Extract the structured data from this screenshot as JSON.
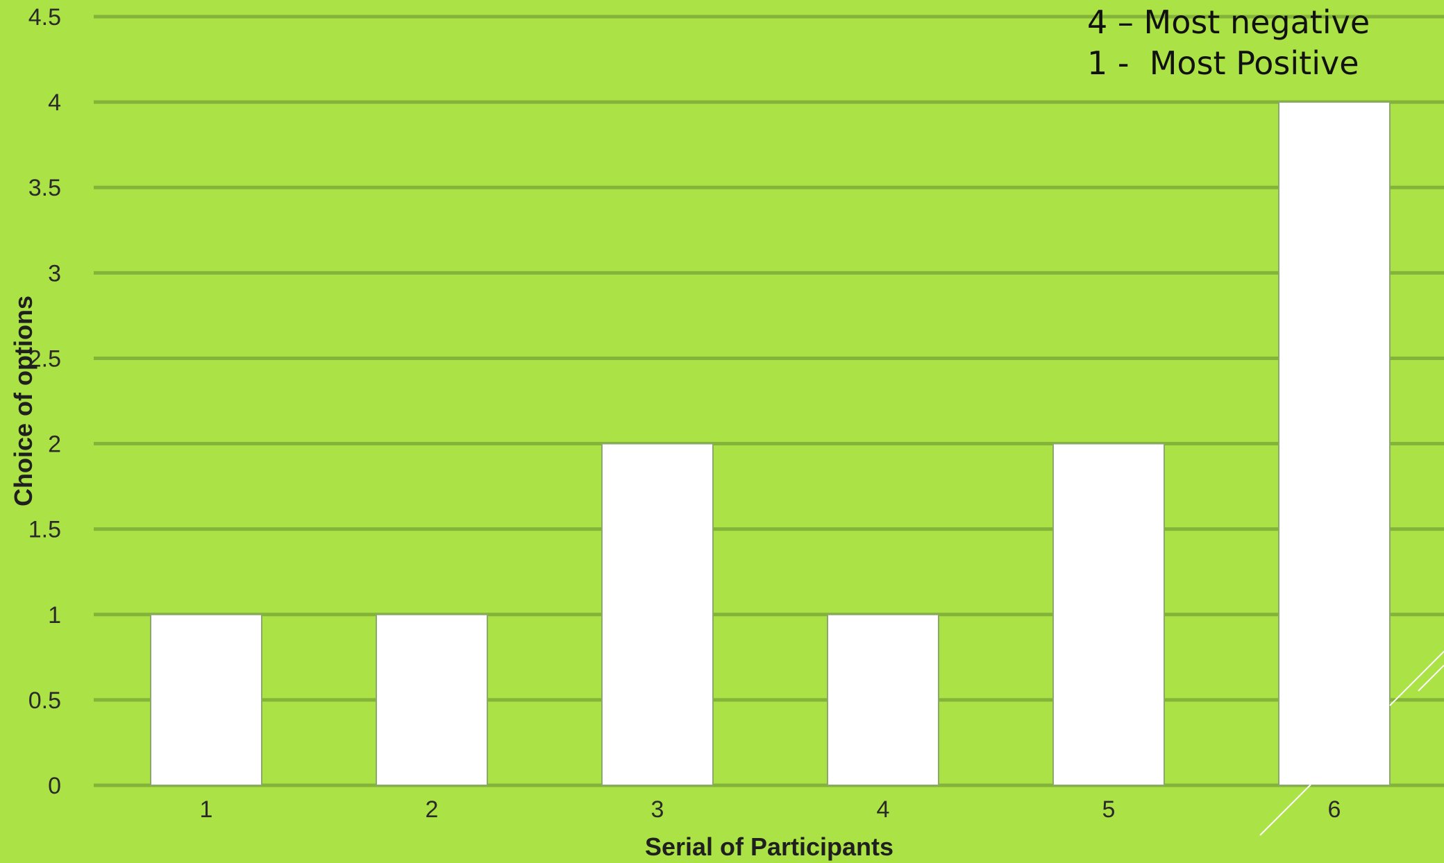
{
  "chart_data": {
    "type": "bar",
    "categories": [
      "1",
      "2",
      "3",
      "4",
      "5",
      "6"
    ],
    "values": [
      1,
      1,
      2,
      1,
      2,
      4
    ],
    "xlabel": "Serial of Participants",
    "ylabel": "Choice  of options",
    "ylim": [
      0,
      4.5
    ],
    "yticks": [
      "0",
      "0.5",
      "1",
      "1.5",
      "2",
      "2.5",
      "3",
      "3.5",
      "4",
      "4.5"
    ],
    "grid": true,
    "annotations": [
      "4 – Most negative",
      "1 -  Most Positive"
    ]
  },
  "colors": {
    "background": "#abe245",
    "gridline": "#84b33a",
    "bar_fill": "#ffffff",
    "bar_stroke": "#8aa86a",
    "deco_lines": "#ffffff"
  }
}
